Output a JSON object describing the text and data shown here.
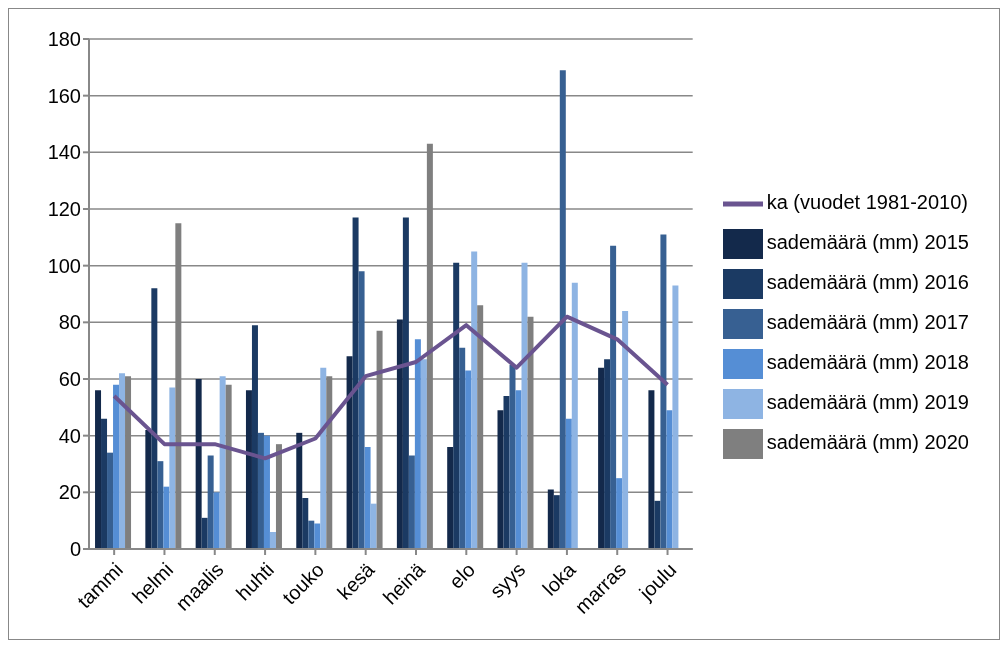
{
  "chart_data": {
    "type": "bar",
    "categories": [
      "tammi",
      "helmi",
      "maalis",
      "huhti",
      "touko",
      "kesä",
      "heinä",
      "elo",
      "syys",
      "loka",
      "marras",
      "joulu"
    ],
    "series": [
      {
        "name": "sademäärä (mm) 2015",
        "color": "#13294b",
        "values": [
          56,
          42,
          60,
          56,
          41,
          68,
          81,
          36,
          49,
          21,
          64,
          56
        ]
      },
      {
        "name": "sademäärä (mm) 2016",
        "color": "#1b3a63",
        "values": [
          46,
          92,
          11,
          79,
          18,
          117,
          117,
          101,
          54,
          19,
          67,
          17
        ]
      },
      {
        "name": "sademäärä (mm) 2017",
        "color": "#376092",
        "values": [
          34,
          31,
          33,
          41,
          10,
          98,
          33,
          71,
          65,
          169,
          107,
          111
        ]
      },
      {
        "name": "sademäärä (mm) 2018",
        "color": "#558ed5",
        "values": [
          58,
          22,
          20,
          40,
          9,
          36,
          74,
          63,
          56,
          46,
          25,
          49
        ]
      },
      {
        "name": "sademäärä (mm) 2019",
        "color": "#8eb4e3",
        "values": [
          62,
          57,
          61,
          6,
          64,
          16,
          67,
          105,
          101,
          94,
          84,
          93
        ]
      },
      {
        "name": "sademäärä (mm) 2020",
        "color": "#7f7f7f",
        "values": [
          61,
          115,
          58,
          37,
          61,
          77,
          143,
          86,
          82,
          null,
          null,
          null
        ]
      },
      {
        "name": "ka (vuodet 1981-2010)",
        "type": "line",
        "color": "#6a5490",
        "values": [
          54,
          37,
          37,
          32,
          39,
          61,
          66,
          79,
          64,
          82,
          74,
          58
        ]
      }
    ],
    "ylim": [
      0,
      180
    ],
    "yticks": [
      0,
      20,
      40,
      60,
      80,
      100,
      120,
      140,
      160,
      180
    ],
    "grid": "y",
    "legend": "right",
    "marker": "none"
  }
}
